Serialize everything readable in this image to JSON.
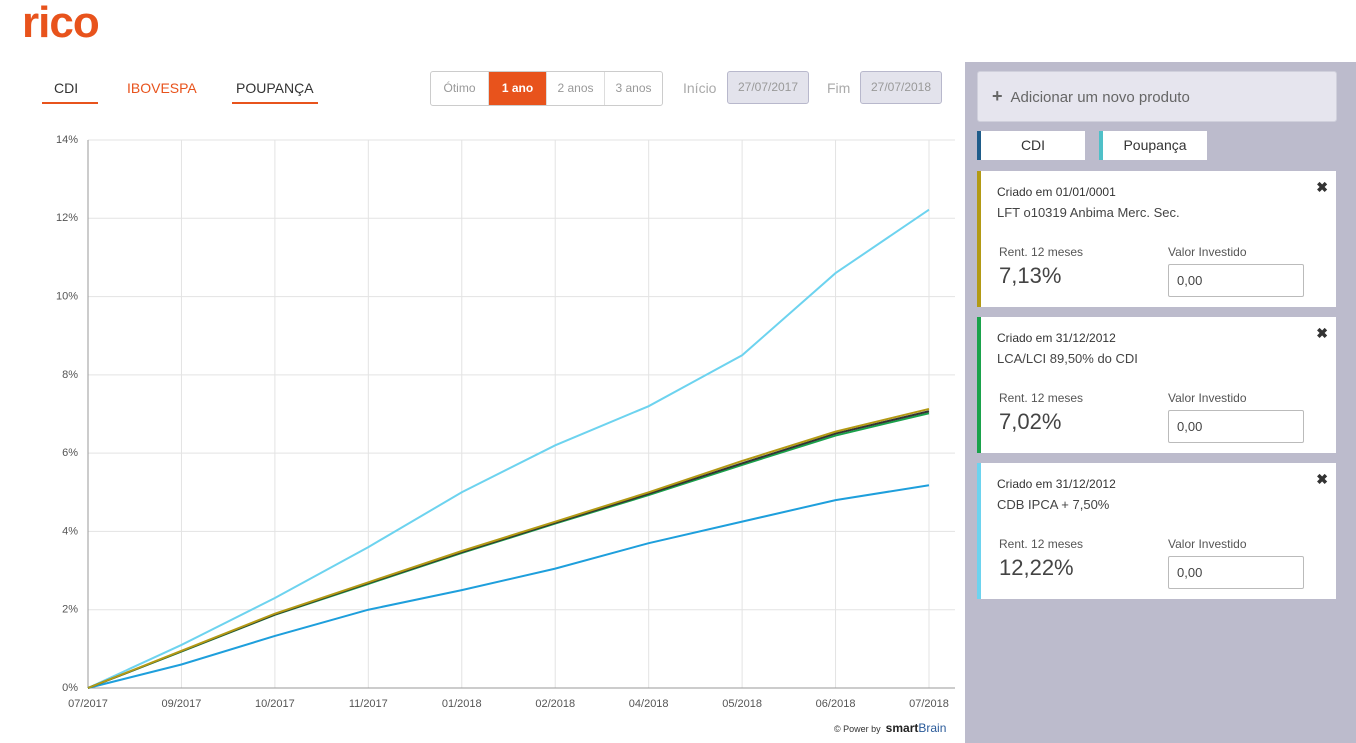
{
  "header": {
    "logo": "rico"
  },
  "tabs": [
    "CDI",
    "IBOVESPA",
    "POUPANÇA"
  ],
  "periods": [
    "Ótimo",
    "1 ano",
    "2 anos",
    "3 anos"
  ],
  "start": {
    "label": "Início",
    "value": "27/07/2017"
  },
  "end": {
    "label": "Fim",
    "value": "27/07/2018"
  },
  "chart_data": {
    "type": "line",
    "categories": [
      "07/2017",
      "09/2017",
      "10/2017",
      "11/2017",
      "01/2018",
      "02/2018",
      "04/2018",
      "05/2018",
      "06/2018",
      "07/2018"
    ],
    "series": [
      {
        "color": "#6dd3ef",
        "values": [
          0,
          1.1,
          2.3,
          3.6,
          5.0,
          6.2,
          7.2,
          8.5,
          10.6,
          12.22
        ]
      },
      {
        "color": "#1e9fdc",
        "values": [
          0,
          0.6,
          1.33,
          2.0,
          2.5,
          3.05,
          3.7,
          4.25,
          4.8,
          5.18
        ]
      },
      {
        "color": "#1aa24b",
        "values": [
          0,
          0.93,
          1.87,
          2.66,
          3.45,
          4.2,
          4.93,
          5.7,
          6.45,
          7.02
        ]
      },
      {
        "color": "#333333",
        "values": [
          0,
          0.94,
          1.88,
          2.68,
          3.47,
          4.22,
          4.96,
          5.74,
          6.5,
          7.07
        ]
      },
      {
        "color": "#b39a14",
        "values": [
          0,
          0.95,
          1.9,
          2.7,
          3.5,
          4.25,
          5.0,
          5.8,
          6.55,
          7.13
        ]
      }
    ],
    "ylim": [
      0,
      14
    ],
    "yticks": [
      {
        "value": 0,
        "label": "0%"
      },
      {
        "value": 2,
        "label": "2%"
      },
      {
        "value": 4,
        "label": "4%"
      },
      {
        "value": 6,
        "label": "6%"
      },
      {
        "value": 8,
        "label": "8%"
      },
      {
        "value": 10,
        "label": "10%"
      },
      {
        "value": 12,
        "label": "12%"
      },
      {
        "value": 14,
        "label": "14%"
      }
    ],
    "grid": true
  },
  "footer": {
    "prefix": "© Power by",
    "brand_bold": "smart",
    "brand": "Brain"
  },
  "panel": {
    "add_button": "Adicionar um novo produto",
    "chips": [
      {
        "label": "CDI",
        "color": "#1f5c8a"
      },
      {
        "label": "Poupança",
        "color": "#4fc0c8"
      }
    ],
    "cards": [
      {
        "created": "Criado em 01/01/0001",
        "name": "LFT o10319 Anbima Merc. Sec.",
        "rent_label": "Rent. 12 meses",
        "rent": "7,13%",
        "invest_label": "Valor Investido",
        "invest": "0,00",
        "color": "#b39a14"
      },
      {
        "created": "Criado em 31/12/2012",
        "name": "LCA/LCI 89,50% do CDI",
        "rent_label": "Rent. 12 meses",
        "rent": "7,02%",
        "invest_label": "Valor Investido",
        "invest": "0,00",
        "color": "#1aa24b"
      },
      {
        "created": "Criado em 31/12/2012",
        "name": "CDB IPCA + 7,50%",
        "rent_label": "Rent. 12 meses",
        "rent": "12,22%",
        "invest_label": "Valor Investido",
        "invest": "0,00",
        "color": "#6dd3ef"
      }
    ]
  }
}
